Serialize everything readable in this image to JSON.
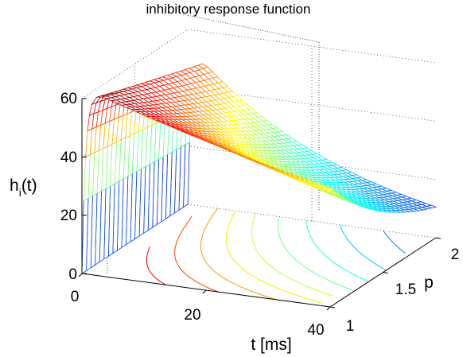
{
  "chart_data": {
    "type": "surface",
    "title": "inhibitory response function",
    "xlabel": "t [ms]",
    "ylabel": "p",
    "zlabel_main": "h",
    "zlabel_sub": "i",
    "zlabel_tail": "(t)",
    "xlim": [
      0,
      40
    ],
    "ylim": [
      1,
      2
    ],
    "zlim": [
      0,
      60
    ],
    "xticks": [
      "0",
      "20",
      "40"
    ],
    "yticks": [
      "1",
      "1.5",
      "2"
    ],
    "zticks": [
      "0",
      "20",
      "40",
      "60"
    ],
    "grid": true,
    "colormap": "jet",
    "function_samples": {
      "t": [
        0,
        2,
        10,
        20,
        30,
        40
      ],
      "p": [
        1,
        1.5,
        2
      ],
      "h": [
        [
          0,
          61,
          58,
          55,
          52,
          49
        ],
        [
          0,
          56,
          47,
          40,
          34,
          30
        ],
        [
          0,
          52,
          39,
          28,
          22,
          18
        ]
      ]
    }
  }
}
